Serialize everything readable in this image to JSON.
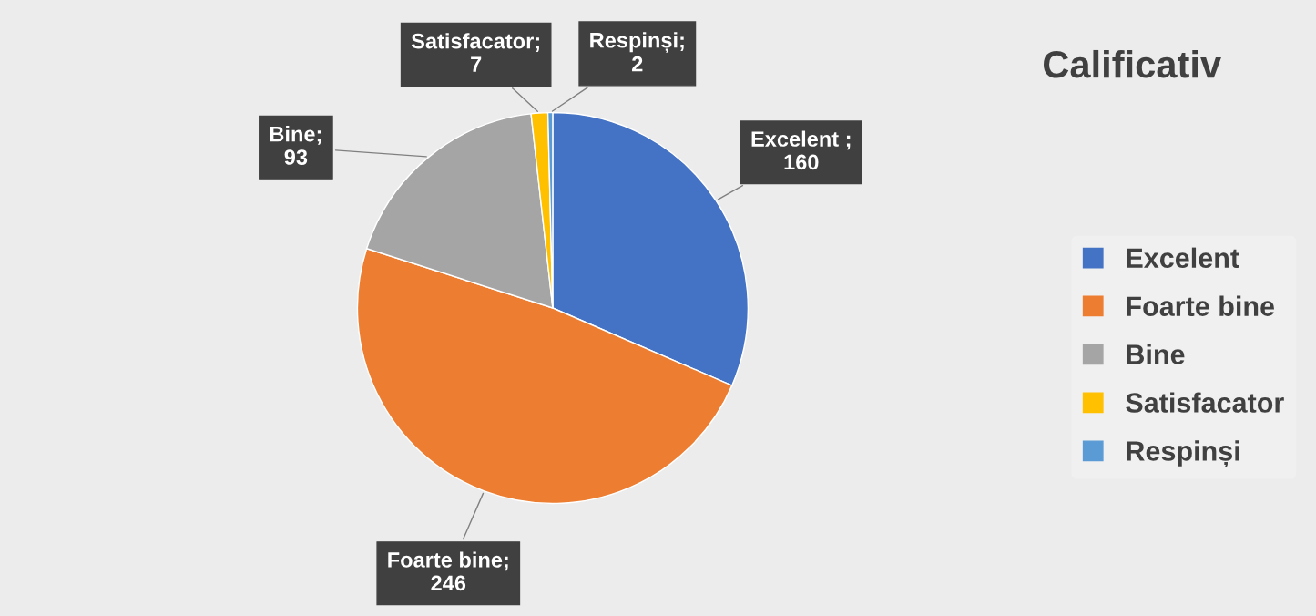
{
  "chart_data": {
    "type": "pie",
    "title": "Calificativ",
    "categories": [
      "Excelent",
      "Foarte bine",
      "Bine",
      "Satisfacator",
      "Respinși"
    ],
    "values": [
      160,
      246,
      93,
      7,
      2
    ],
    "colors": [
      "#4472c4",
      "#ed7d31",
      "#a5a5a5",
      "#ffc000",
      "#5b9bd5"
    ],
    "value_labels": [
      "Excelent ;\n160",
      "Foarte bine;\n246",
      "Bine;\n93",
      "Satisfacator;\n7",
      "Respinși;\n2"
    ],
    "legend": "right"
  }
}
